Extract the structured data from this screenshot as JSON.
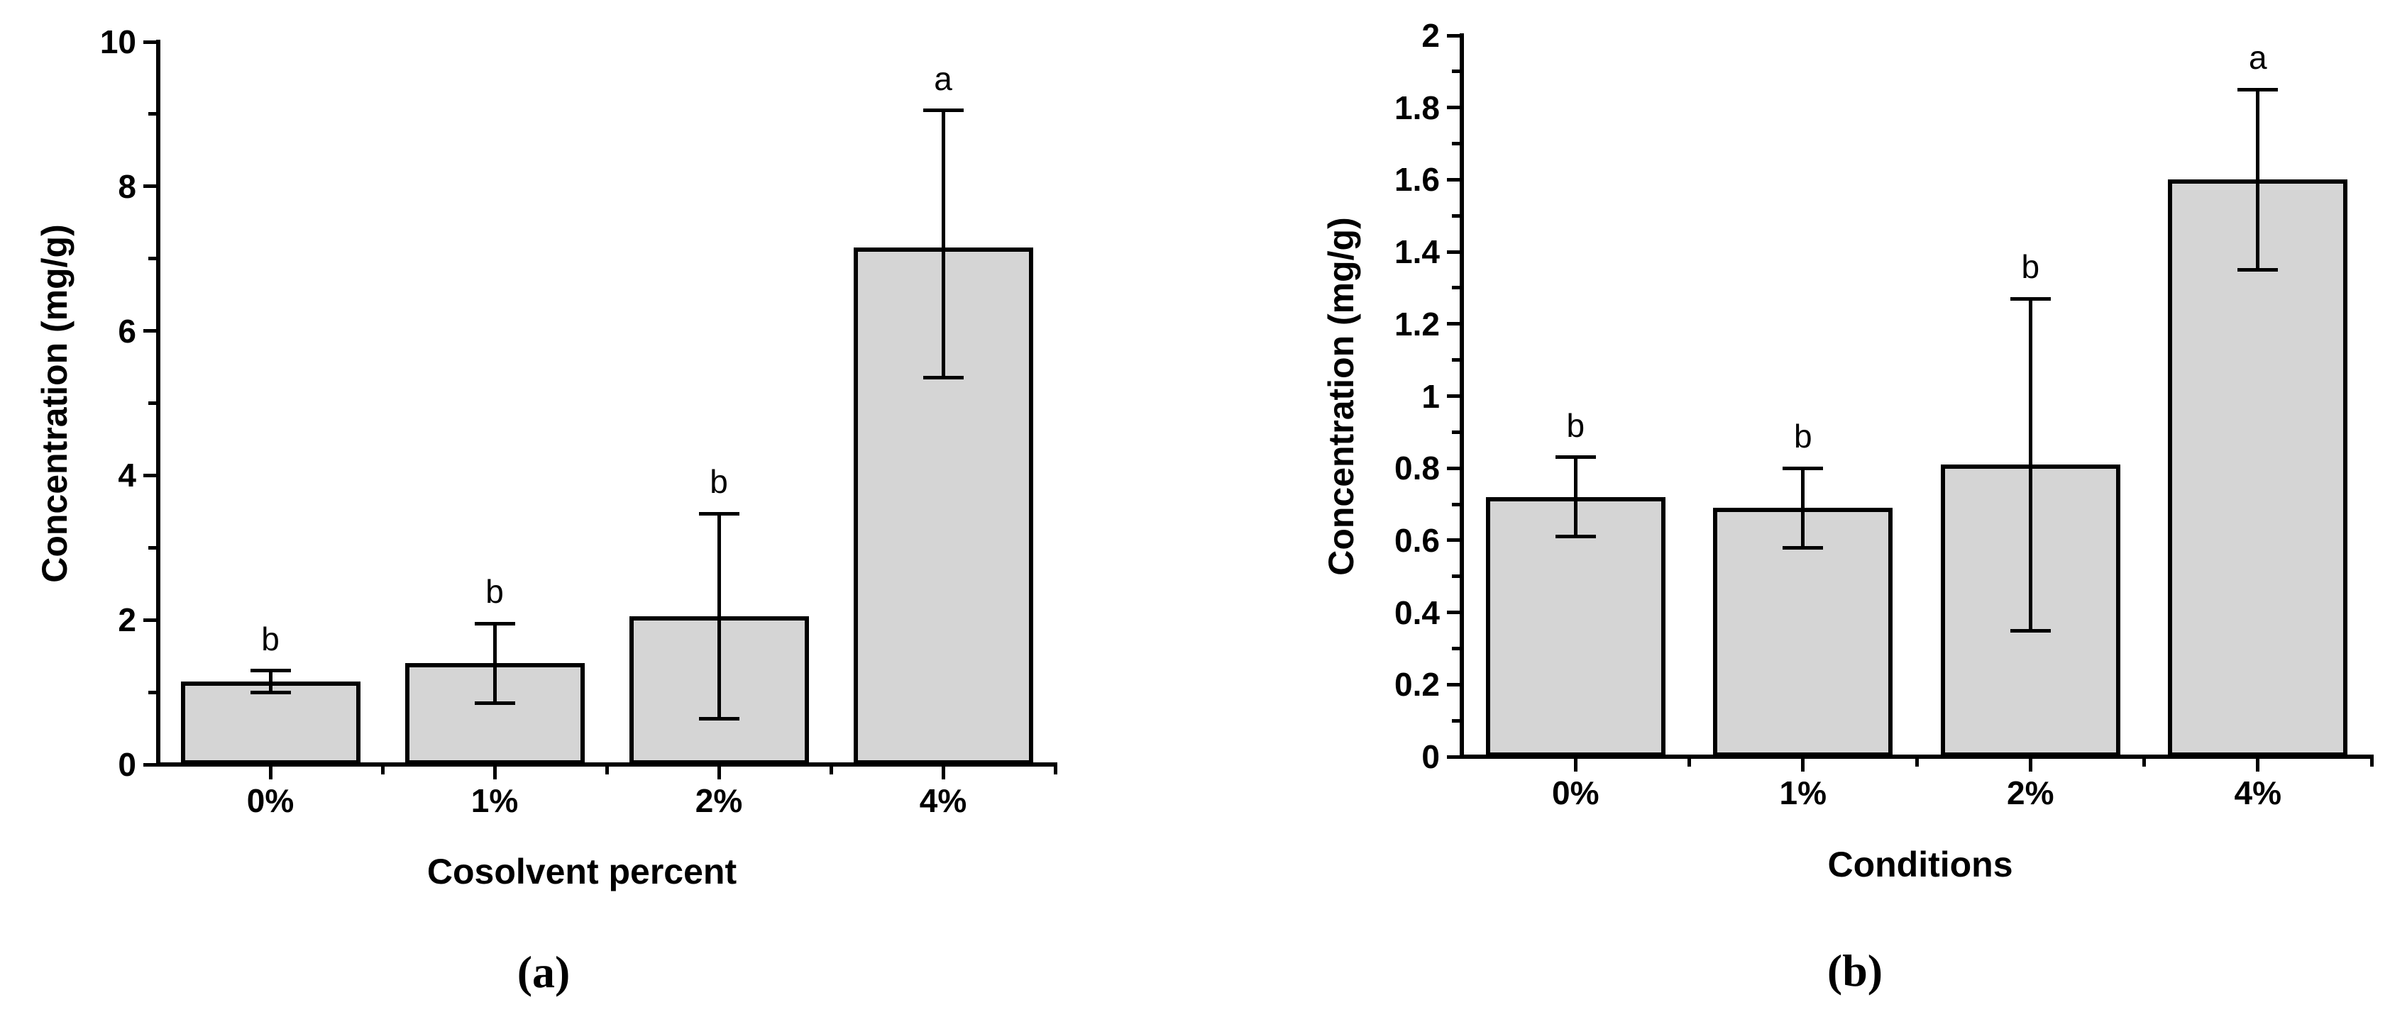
{
  "figure": {
    "background": "#ffffff",
    "text_color": "#000000",
    "bar_fill": "#d5d5d5",
    "bar_border": "#000000"
  },
  "chart_data": [
    {
      "type": "bar",
      "panel_label": "(a)",
      "xlabel": "Cosolvent percent",
      "ylabel": "Concentration (mg/g)",
      "categories": [
        "0%",
        "1%",
        "2%",
        "4%"
      ],
      "values": [
        1.15,
        1.4,
        2.05,
        7.15
      ],
      "error_low": [
        1.0,
        0.85,
        0.63,
        5.35
      ],
      "error_high": [
        1.3,
        1.95,
        3.47,
        9.05
      ],
      "sig_letters": [
        "b",
        "b",
        "b",
        "a"
      ],
      "ylim": [
        0,
        10
      ],
      "y_ticks": {
        "major": [
          0,
          2,
          4,
          6,
          8,
          10
        ],
        "labels": [
          "0",
          "2",
          "4",
          "6",
          "8",
          "10"
        ],
        "minor": [
          1,
          3,
          5,
          7,
          9
        ]
      },
      "grid": false,
      "legend": null
    },
    {
      "type": "bar",
      "panel_label": "(b)",
      "xlabel": "Conditions",
      "ylabel": "Concentration (mg/g)",
      "categories": [
        "0%",
        "1%",
        "2%",
        "4%"
      ],
      "values": [
        0.72,
        0.69,
        0.81,
        1.6
      ],
      "error_low": [
        0.61,
        0.58,
        0.35,
        1.35
      ],
      "error_high": [
        0.83,
        0.8,
        1.27,
        1.85
      ],
      "sig_letters": [
        "b",
        "b",
        "b",
        "a"
      ],
      "ylim": [
        0,
        2
      ],
      "y_ticks": {
        "major": [
          0,
          0.2,
          0.4,
          0.6,
          0.8,
          1,
          1.2,
          1.4,
          1.6,
          1.8,
          2
        ],
        "labels": [
          "0",
          "0.2",
          "0.4",
          "0.6",
          "0.8",
          "1",
          "1.2",
          "1.4",
          "1.6",
          "1.8",
          "2"
        ],
        "minor": [
          0.1,
          0.3,
          0.5,
          0.7,
          0.9,
          1.1,
          1.3,
          1.5,
          1.7,
          1.9
        ]
      },
      "grid": false,
      "legend": null
    }
  ]
}
